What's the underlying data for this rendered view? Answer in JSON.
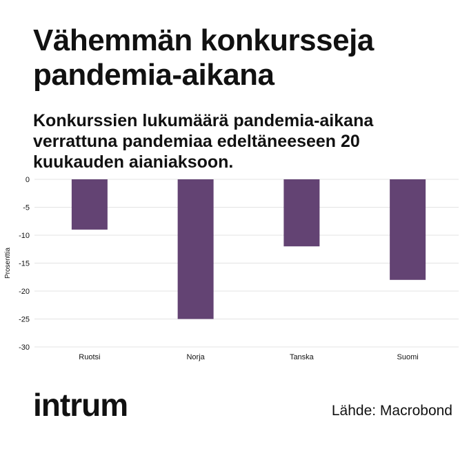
{
  "header": {
    "title": "Vähemmän konkursseja pandemia-aikana",
    "subtitle": "Konkurssien lukumäärä pandemia-aikana verrattuna pandemiaa edeltäneeseen 20 kuukauden aianiaksoon."
  },
  "footer": {
    "logo": "intrum",
    "source": "Lähde: Macrobond"
  },
  "colors": {
    "bar": "#634373",
    "grid": "#e3e3e3",
    "text": "#111111"
  },
  "chart_data": {
    "type": "bar",
    "categories": [
      "Ruotsi",
      "Norja",
      "Tanska",
      "Suomi"
    ],
    "values": [
      -9,
      -25,
      -12,
      -18
    ],
    "ylabel": "Prosenttia",
    "xlabel": "",
    "ylim": [
      -30,
      0
    ],
    "yticks": [
      0,
      -5,
      -10,
      -15,
      -20,
      -25,
      -30
    ],
    "grid": true,
    "legend": "none"
  }
}
